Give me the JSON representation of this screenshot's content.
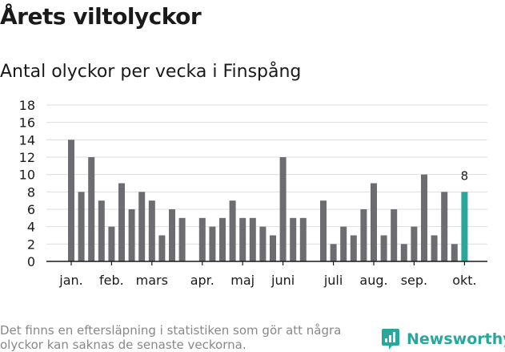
{
  "title": "Årets viltolyckor",
  "subtitle": "Antal olyckor per vecka i Finspång",
  "footnote": "Det finns en eftersläpning i statistiken som gör att några olyckor kan saknas de senaste veckorna.",
  "brand": {
    "name": "Newsworthy",
    "color": "#2aa79b",
    "icon": "newsworthy-logo-icon"
  },
  "chart_data": {
    "type": "bar",
    "title": "Antal olyckor per vecka i Finspång",
    "xlabel": "",
    "ylabel": "",
    "ylim": [
      0,
      18
    ],
    "yticks": [
      0,
      2,
      4,
      6,
      8,
      10,
      12,
      14,
      16,
      18
    ],
    "grid": true,
    "legend": "none",
    "x": [
      1,
      2,
      3,
      4,
      5,
      6,
      7,
      8,
      9,
      10,
      11,
      12,
      13,
      14,
      15,
      16,
      17,
      18,
      19,
      20,
      21,
      22,
      23,
      24,
      25,
      26,
      27,
      28,
      29,
      30,
      31,
      32,
      33,
      34,
      35,
      36,
      37,
      38,
      39,
      40
    ],
    "values": [
      14,
      8,
      12,
      7,
      4,
      9,
      6,
      8,
      7,
      3,
      6,
      5,
      0,
      5,
      4,
      5,
      7,
      5,
      5,
      4,
      3,
      12,
      5,
      5,
      0,
      7,
      2,
      4,
      3,
      6,
      9,
      3,
      6,
      2,
      4,
      10,
      3,
      8,
      2,
      8
    ],
    "month_labels": [
      {
        "label": "jan.",
        "x": 1
      },
      {
        "label": "feb.",
        "x": 5
      },
      {
        "label": "mars",
        "x": 9
      },
      {
        "label": "apr.",
        "x": 14
      },
      {
        "label": "maj",
        "x": 18
      },
      {
        "label": "juni",
        "x": 22
      },
      {
        "label": "juli",
        "x": 27
      },
      {
        "label": "aug.",
        "x": 31
      },
      {
        "label": "sep.",
        "x": 35
      },
      {
        "label": "okt.",
        "x": 40
      }
    ],
    "highlight": {
      "x": 40,
      "value_label": "8"
    },
    "bar_color": "#6d6c70",
    "highlight_color": "#2aa79b",
    "grid_color": "#dddddd"
  }
}
